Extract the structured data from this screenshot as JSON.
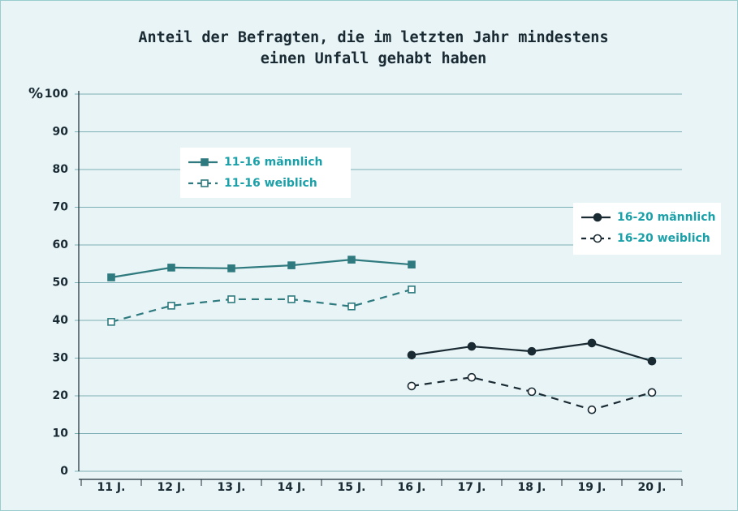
{
  "chart_data": {
    "type": "line",
    "title": [
      "Anteil der Befragten, die im letzten Jahr mindestens",
      "einen Unfall gehabt haben"
    ],
    "y_label": "%",
    "categories": [
      "11 J.",
      "12 J.",
      "13 J.",
      "14 J.",
      "15 J.",
      "16 J.",
      "17 J.",
      "18 J.",
      "19 J.",
      "20 J."
    ],
    "series": [
      {
        "name": "11-16 männlich",
        "color": "#2e7a7e",
        "marker": "square",
        "filled": true,
        "dashed": false,
        "values": [
          51.4,
          54.0,
          53.8,
          54.6,
          56.1,
          54.8,
          null,
          null,
          null,
          null
        ]
      },
      {
        "name": "11-16 weiblich",
        "color": "#2e7a7e",
        "marker": "square",
        "filled": false,
        "dashed": true,
        "values": [
          39.6,
          43.9,
          45.6,
          45.6,
          43.7,
          48.2,
          null,
          null,
          null,
          null
        ]
      },
      {
        "name": "16-20 männlich",
        "color": "#1a2a33",
        "marker": "circle",
        "filled": true,
        "dashed": false,
        "values": [
          null,
          null,
          null,
          null,
          null,
          30.8,
          33.1,
          31.8,
          34.0,
          29.2
        ]
      },
      {
        "name": "16-20 weiblich",
        "color": "#1a2a33",
        "marker": "circle",
        "filled": false,
        "dashed": true,
        "values": [
          null,
          null,
          null,
          null,
          null,
          22.6,
          24.9,
          21.1,
          16.3,
          20.9
        ]
      }
    ],
    "ylim": [
      0,
      100
    ],
    "yticks": [
      0,
      10,
      20,
      30,
      40,
      50,
      60,
      70,
      80,
      90,
      100
    ],
    "grid": true
  }
}
